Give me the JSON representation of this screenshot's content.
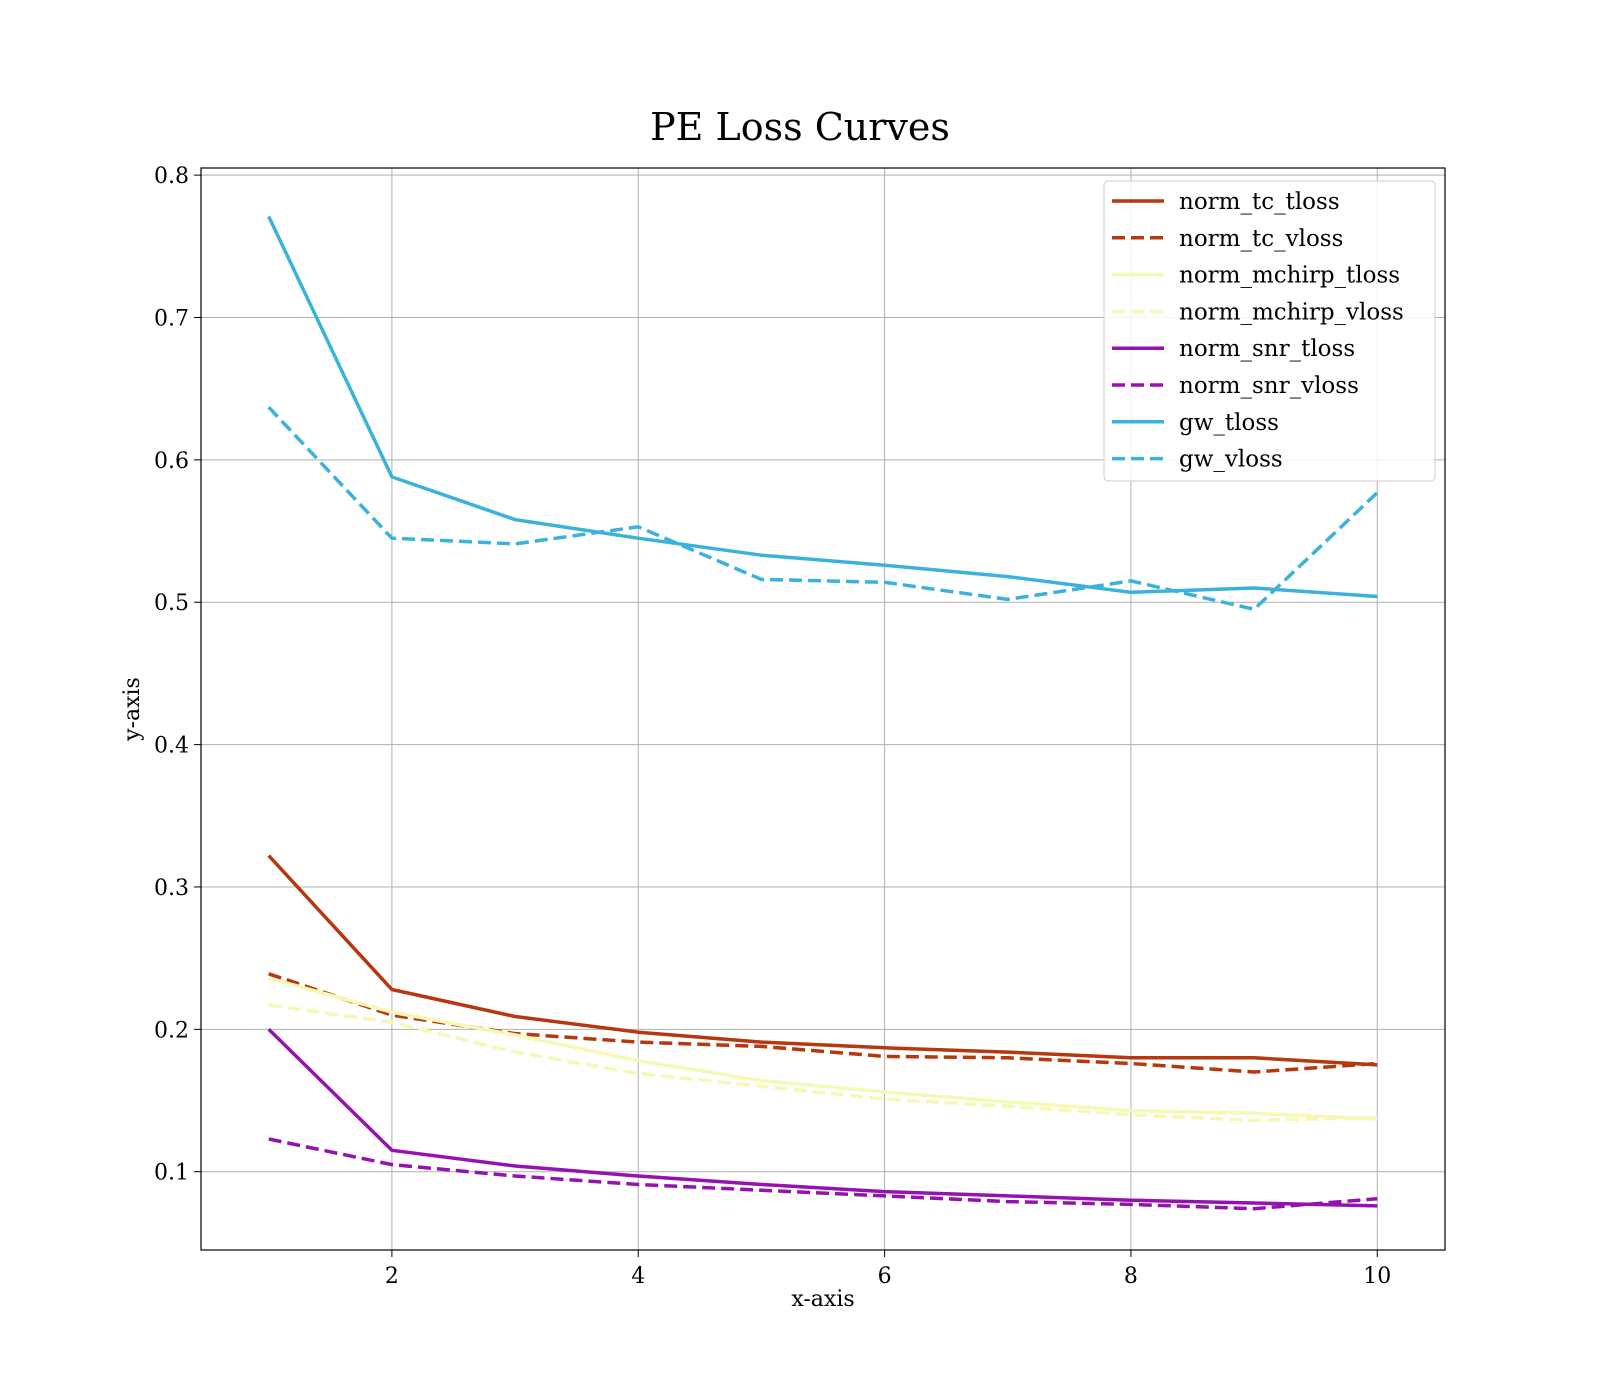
{
  "chart_data": {
    "type": "line",
    "title": "PE Loss Curves",
    "xlabel": "x-axis",
    "ylabel": "y-axis",
    "xlim": [
      0.45,
      10.55
    ],
    "ylim": [
      0.045,
      0.805
    ],
    "xticks": [
      2,
      4,
      6,
      8,
      10
    ],
    "xtick_labels": [
      "2",
      "4",
      "6",
      "8",
      "10"
    ],
    "yticks": [
      0.1,
      0.2,
      0.3,
      0.4,
      0.5,
      0.6,
      0.7,
      0.8
    ],
    "ytick_labels": [
      "0.1",
      "0.2",
      "0.3",
      "0.4",
      "0.5",
      "0.6",
      "0.7",
      "0.8"
    ],
    "grid": true,
    "legend_position": "top-right",
    "x": [
      1,
      2,
      3,
      4,
      5,
      6,
      7,
      8,
      9,
      10
    ],
    "series": [
      {
        "name": "norm_tc_tloss",
        "color": "#b5380e",
        "dash": "solid",
        "values": [
          0.322,
          0.228,
          0.209,
          0.198,
          0.191,
          0.187,
          0.184,
          0.18,
          0.18,
          0.175
        ]
      },
      {
        "name": "norm_tc_vloss",
        "color": "#b5380e",
        "dash": "dashed",
        "values": [
          0.239,
          0.21,
          0.197,
          0.191,
          0.188,
          0.181,
          0.18,
          0.176,
          0.17,
          0.176
        ]
      },
      {
        "name": "norm_mchirp_tloss",
        "color": "#f6f8b5",
        "dash": "solid",
        "values": [
          0.236,
          0.212,
          0.196,
          0.178,
          0.164,
          0.156,
          0.149,
          0.143,
          0.141,
          0.137
        ]
      },
      {
        "name": "norm_mchirp_vloss",
        "color": "#f6f8b5",
        "dash": "dashed",
        "values": [
          0.217,
          0.205,
          0.184,
          0.169,
          0.16,
          0.151,
          0.146,
          0.14,
          0.136,
          0.138
        ]
      },
      {
        "name": "norm_snr_tloss",
        "color": "#9512b0",
        "dash": "solid",
        "values": [
          0.2,
          0.115,
          0.104,
          0.097,
          0.091,
          0.086,
          0.083,
          0.08,
          0.078,
          0.076
        ]
      },
      {
        "name": "norm_snr_vloss",
        "color": "#9512b0",
        "dash": "dashed",
        "values": [
          0.123,
          0.105,
          0.097,
          0.091,
          0.087,
          0.083,
          0.079,
          0.077,
          0.074,
          0.081
        ]
      },
      {
        "name": "gw_tloss",
        "color": "#3ab2db",
        "dash": "solid",
        "values": [
          0.771,
          0.588,
          0.558,
          0.545,
          0.533,
          0.526,
          0.518,
          0.507,
          0.51,
          0.504
        ]
      },
      {
        "name": "gw_vloss",
        "color": "#3ab2db",
        "dash": "dashed",
        "values": [
          0.637,
          0.545,
          0.541,
          0.553,
          0.516,
          0.514,
          0.502,
          0.515,
          0.495,
          0.577
        ]
      }
    ]
  }
}
